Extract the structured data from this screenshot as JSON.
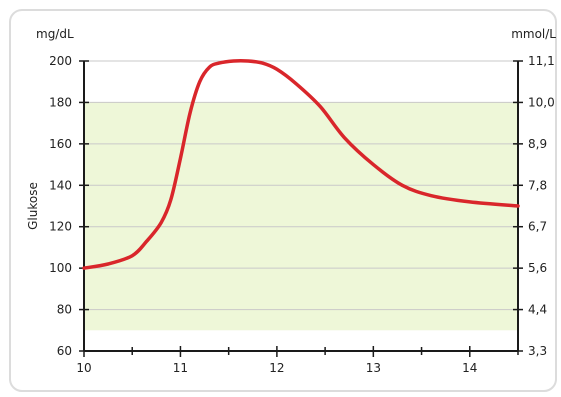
{
  "chart_data": {
    "type": "line",
    "left_unit_label": "mg/dL",
    "right_unit_label": "mmol/L",
    "ylabel": "Glukose",
    "xlabel": "",
    "x_ticks": [
      "10",
      "11",
      "12",
      "13",
      "14"
    ],
    "x_tick_values": [
      10,
      11,
      12,
      13,
      14
    ],
    "xlim": [
      10,
      14.5
    ],
    "y_ticks_left": [
      "60",
      "80",
      "100",
      "120",
      "140",
      "160",
      "180",
      "200"
    ],
    "y_tick_values_left": [
      60,
      80,
      100,
      120,
      140,
      160,
      180,
      200
    ],
    "y_ticks_right": [
      "3,3",
      "4,4",
      "5,6",
      "6,7",
      "7,8",
      "8,9",
      "10,0",
      "11,1"
    ],
    "ylim": [
      60,
      200
    ],
    "target_range": [
      70,
      180
    ],
    "target_range_color": "#eef7d8",
    "series": [
      {
        "color": "#d9262b",
        "x": [
          10.0,
          10.25,
          10.5,
          10.65,
          10.8,
          10.9,
          11.0,
          11.1,
          11.2,
          11.3,
          11.4,
          11.55,
          11.7,
          11.85,
          12.0,
          12.2,
          12.45,
          12.7,
          13.0,
          13.3,
          13.6,
          14.0,
          14.5
        ],
        "y": [
          100,
          102,
          106,
          113,
          122,
          133,
          153,
          175,
          190,
          197,
          199,
          200,
          200,
          199,
          196,
          189,
          178,
          163,
          150,
          140,
          135,
          132,
          130
        ]
      }
    ]
  }
}
